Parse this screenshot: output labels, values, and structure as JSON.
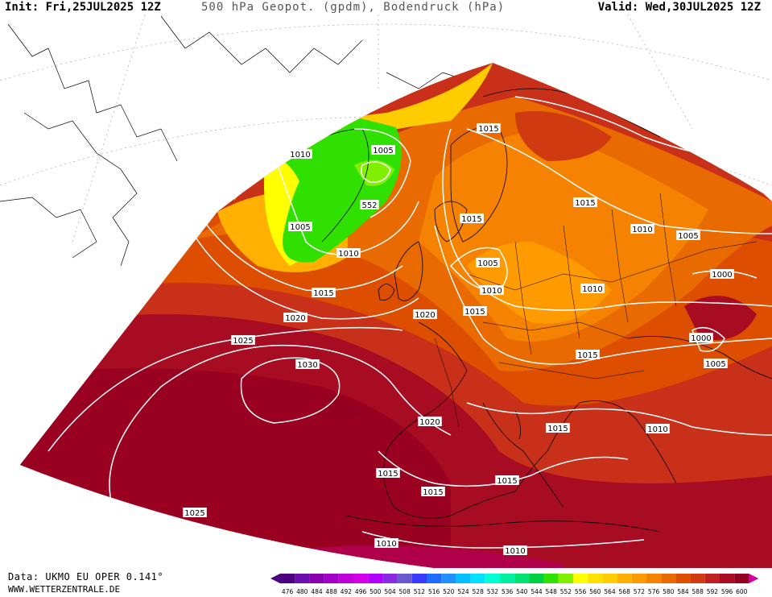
{
  "header": {
    "init": "Init: Fri,25JUL2025 12Z",
    "title": "500 hPa Geopot. (gpdm), Bodendruck (hPa)",
    "valid": "Valid: Wed,30JUL2025 12Z"
  },
  "footer": {
    "data_source": "Data: UKMO EU OPER 0.141°",
    "website": "WWW.WETTERZENTRALE.DE"
  },
  "legend": {
    "values": [
      "476",
      "480",
      "484",
      "488",
      "492",
      "496",
      "500",
      "504",
      "508",
      "512",
      "516",
      "520",
      "524",
      "528",
      "532",
      "536",
      "540",
      "544",
      "548",
      "552",
      "556",
      "560",
      "564",
      "568",
      "572",
      "576",
      "580",
      "584",
      "588",
      "592",
      "596",
      "600"
    ],
    "colors": [
      "#4b0082",
      "#6a0dad",
      "#8b00b0",
      "#a400c8",
      "#c000d8",
      "#d400e8",
      "#b000ff",
      "#8a2be2",
      "#6a5acd",
      "#3a3aff",
      "#1e6bff",
      "#1e90ff",
      "#00bfff",
      "#00e0ff",
      "#00ffd0",
      "#00f0a0",
      "#00e070",
      "#00d040",
      "#30e000",
      "#80f000",
      "#ffff00",
      "#ffe000",
      "#ffcc00",
      "#ffb000",
      "#ff9a00",
      "#f58200",
      "#e86a00",
      "#dd4e00",
      "#d03a10",
      "#c02020",
      "#a80c22",
      "#950020"
    ]
  },
  "isobar_labels": [
    {
      "text": "1010"
    },
    {
      "text": "1005"
    },
    {
      "text": "552"
    },
    {
      "text": "1005"
    },
    {
      "text": "1010"
    },
    {
      "text": "1015"
    },
    {
      "text": "1015"
    },
    {
      "text": "1010"
    },
    {
      "text": "1005"
    },
    {
      "text": "1010"
    },
    {
      "text": "1015"
    },
    {
      "text": "1010"
    },
    {
      "text": "1010"
    },
    {
      "text": "1005"
    },
    {
      "text": "1000"
    },
    {
      "text": "1020"
    },
    {
      "text": "1015"
    },
    {
      "text": "1020"
    },
    {
      "text": "1025"
    },
    {
      "text": "1030"
    },
    {
      "text": "1000"
    },
    {
      "text": "1005"
    },
    {
      "text": "1015"
    },
    {
      "text": "1020"
    },
    {
      "text": "1015"
    },
    {
      "text": "1010"
    },
    {
      "text": "1015"
    },
    {
      "text": "1015"
    },
    {
      "text": "1015"
    },
    {
      "text": "1025"
    },
    {
      "text": "1010"
    },
    {
      "text": "1010"
    },
    {
      "text": "1015"
    }
  ]
}
